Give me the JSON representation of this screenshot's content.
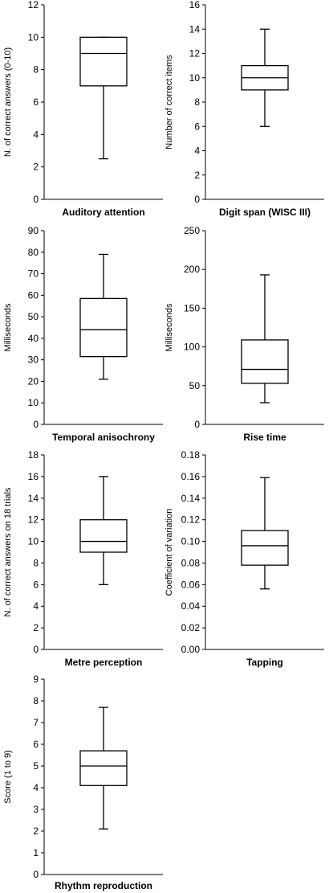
{
  "chart_data": [
    {
      "type": "box",
      "xlabel": "Auditory attention",
      "ylabel": "N. of correct answers (0-10)",
      "ylim": [
        0,
        12
      ],
      "yticks": [
        0,
        2,
        4,
        6,
        8,
        10,
        12
      ],
      "tick_labels": [
        "0",
        "2",
        "4",
        "6",
        "8",
        "10",
        "12"
      ],
      "box": {
        "min": 2.5,
        "q1": 7,
        "median": 9,
        "q3": 10,
        "max": 10
      }
    },
    {
      "type": "box",
      "xlabel": "Digit span (WISC III)",
      "ylabel": "Number of correct items",
      "ylim": [
        0,
        16
      ],
      "yticks": [
        0,
        2,
        4,
        6,
        8,
        10,
        12,
        14,
        16
      ],
      "tick_labels": [
        "0",
        "2",
        "4",
        "6",
        "8",
        "10",
        "12",
        "14",
        "16"
      ],
      "box": {
        "min": 6,
        "q1": 9,
        "median": 10,
        "q3": 11,
        "max": 14
      }
    },
    {
      "type": "box",
      "xlabel": "Temporal anisochrony",
      "ylabel": "Milliseconds",
      "ylim": [
        0,
        90
      ],
      "yticks": [
        0,
        10,
        20,
        30,
        40,
        50,
        60,
        70,
        80,
        90
      ],
      "tick_labels": [
        "0",
        "10",
        "20",
        "30",
        "40",
        "50",
        "60",
        "70",
        "80",
        "90"
      ],
      "box": {
        "min": 21,
        "q1": 31.5,
        "median": 44,
        "q3": 58.5,
        "max": 79
      }
    },
    {
      "type": "box",
      "xlabel": "Rise time",
      "ylabel": "Milliseconds",
      "ylim": [
        0,
        250
      ],
      "yticks": [
        0,
        50,
        100,
        150,
        200,
        250
      ],
      "tick_labels": [
        "0",
        "50",
        "100",
        "150",
        "200",
        "250"
      ],
      "box": {
        "min": 28,
        "q1": 53,
        "median": 71,
        "q3": 109,
        "max": 193
      }
    },
    {
      "type": "box",
      "xlabel": "Metre perception",
      "ylabel": "N. of correct answers on 18 trials",
      "ylim": [
        0,
        18
      ],
      "yticks": [
        0,
        2,
        4,
        6,
        8,
        10,
        12,
        14,
        16,
        18
      ],
      "tick_labels": [
        "0",
        "2",
        "4",
        "6",
        "8",
        "10",
        "12",
        "14",
        "16",
        "18"
      ],
      "box": {
        "min": 6,
        "q1": 9,
        "median": 10,
        "q3": 12,
        "max": 16
      }
    },
    {
      "type": "box",
      "xlabel": "Tapping",
      "ylabel": "Coefficient of variation",
      "ylim": [
        0,
        0.18
      ],
      "yticks": [
        0,
        0.02,
        0.04,
        0.06,
        0.08,
        0.1,
        0.12,
        0.14,
        0.16,
        0.18
      ],
      "tick_labels": [
        "0.00",
        "0.02",
        "0.04",
        "0.06",
        "0.08",
        "0.10",
        "0.12",
        "0.14",
        "0.16",
        "0.18"
      ],
      "box": {
        "min": 0.056,
        "q1": 0.078,
        "median": 0.096,
        "q3": 0.11,
        "max": 0.159
      }
    },
    {
      "type": "box",
      "xlabel": "Rhythm reproduction",
      "ylabel": "Score (1 to 9)",
      "ylim": [
        0,
        9
      ],
      "yticks": [
        0,
        1,
        2,
        3,
        4,
        5,
        6,
        7,
        8,
        9
      ],
      "tick_labels": [
        "0",
        "1",
        "2",
        "3",
        "4",
        "5",
        "6",
        "7",
        "8",
        "9"
      ],
      "box": {
        "min": 2.1,
        "q1": 4.1,
        "median": 5,
        "q3": 5.7,
        "max": 7.7
      }
    }
  ]
}
